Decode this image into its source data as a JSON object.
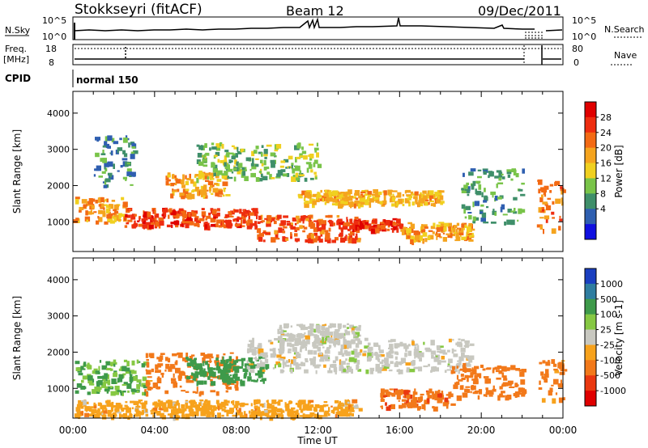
{
  "header": {
    "station": "Stokkseyri (fitACF)",
    "beam": "Beam 12",
    "date": "09/Dec/2011"
  },
  "noise_panel": {
    "left_label": "N.Sky",
    "left_ticks": [
      "10^5",
      "10^0"
    ],
    "right_ticks": [
      "10^5",
      "10^0"
    ],
    "right_label": "N.Search"
  },
  "freq_panel": {
    "label_line1": "Freq.",
    "label_line2": "[MHz]",
    "left_ticks": [
      "18",
      "8"
    ],
    "right_ticks": [
      "80",
      "0"
    ],
    "right_label": "Nave"
  },
  "cpid": {
    "label": "CPID",
    "value": "normal 150"
  },
  "x_axis": {
    "ticks": [
      "00:00",
      "04:00",
      "08:00",
      "12:00",
      "16:00",
      "20:00",
      "00:00"
    ],
    "label": "Time UT"
  },
  "chart_data": [
    {
      "type": "heatmap",
      "panel": "power",
      "ylabel": "Slant Range [km]",
      "yticks": [
        "1000",
        "2000",
        "3000",
        "4000"
      ],
      "ylim": [
        180,
        4600
      ],
      "colorbar_label": "Power [dB]",
      "colorbar_ticks": [
        "4",
        "8",
        "12",
        "16",
        "20",
        "24",
        "28"
      ],
      "colors": [
        "#1010e0",
        "#2f5fb0",
        "#3f8f6a",
        "#79c449",
        "#f0d020",
        "#f5a41e",
        "#f36a14",
        "#ee2d10",
        "#e00000"
      ],
      "bands": [
        {
          "t0": 0.0,
          "t1": 2.5,
          "r0": 1000,
          "r1": 1700,
          "v": 22
        },
        {
          "t0": 2.5,
          "t1": 9.0,
          "r0": 900,
          "r1": 1400,
          "v": 27
        },
        {
          "t0": 4.5,
          "t1": 7.5,
          "r0": 1700,
          "r1": 2400,
          "v": 22
        },
        {
          "t0": 9.0,
          "t1": 14.0,
          "r0": 500,
          "r1": 1200,
          "v": 26
        },
        {
          "t0": 11.0,
          "t1": 18.0,
          "r0": 1500,
          "r1": 1900,
          "v": 20
        },
        {
          "t0": 13.0,
          "t1": 16.0,
          "r0": 800,
          "r1": 1100,
          "v": 28
        },
        {
          "t0": 16.0,
          "t1": 19.5,
          "r0": 500,
          "r1": 1000,
          "v": 22
        },
        {
          "t0": 19.0,
          "t1": 22.0,
          "r0": 1000,
          "r1": 2500,
          "v": 12
        },
        {
          "t0": 1.0,
          "t1": 3.0,
          "r0": 2000,
          "r1": 3400,
          "v": 10
        },
        {
          "t0": 6.0,
          "t1": 12.0,
          "r0": 2200,
          "r1": 3200,
          "v": 14
        },
        {
          "t0": 22.7,
          "t1": 24.0,
          "r0": 800,
          "r1": 2200,
          "v": 24
        }
      ]
    },
    {
      "type": "heatmap",
      "panel": "velocity",
      "ylabel": "Slant Range [km]",
      "yticks": [
        "1000",
        "2000",
        "3000",
        "4000"
      ],
      "ylim": [
        180,
        4600
      ],
      "colorbar_label": "Velocity [m s-1]",
      "colorbar_ticks": [
        "1000",
        "500",
        "100",
        "25",
        "-25",
        "-100",
        "-500",
        "-1000"
      ],
      "colors": [
        "#1a3fc0",
        "#2f7da0",
        "#3e9a4a",
        "#86c843",
        "#c8c8c0",
        "#f7a21c",
        "#f2791a",
        "#ea3810",
        "#e00000"
      ],
      "bands": [
        {
          "t0": 0.0,
          "t1": 3.5,
          "r0": 900,
          "r1": 1800,
          "v": 100
        },
        {
          "t0": 3.5,
          "t1": 8.0,
          "r0": 900,
          "r1": 2000,
          "v": -200
        },
        {
          "t0": 5.5,
          "t1": 9.5,
          "r0": 1200,
          "r1": 1900,
          "v": 300
        },
        {
          "t0": 8.5,
          "t1": 19.5,
          "r0": 1500,
          "r1": 2400,
          "v": 0
        },
        {
          "t0": 10.0,
          "t1": 14.0,
          "r0": 2300,
          "r1": 2800,
          "v": 0
        },
        {
          "t0": 15.0,
          "t1": 18.5,
          "r0": 500,
          "r1": 1000,
          "v": -400
        },
        {
          "t0": 18.5,
          "t1": 22.0,
          "r0": 800,
          "r1": 1700,
          "v": -300
        },
        {
          "t0": 0.0,
          "t1": 14.0,
          "r0": 250,
          "r1": 700,
          "v": -60
        },
        {
          "t0": 22.7,
          "t1": 24.0,
          "r0": 700,
          "r1": 1900,
          "v": -150
        }
      ]
    }
  ]
}
